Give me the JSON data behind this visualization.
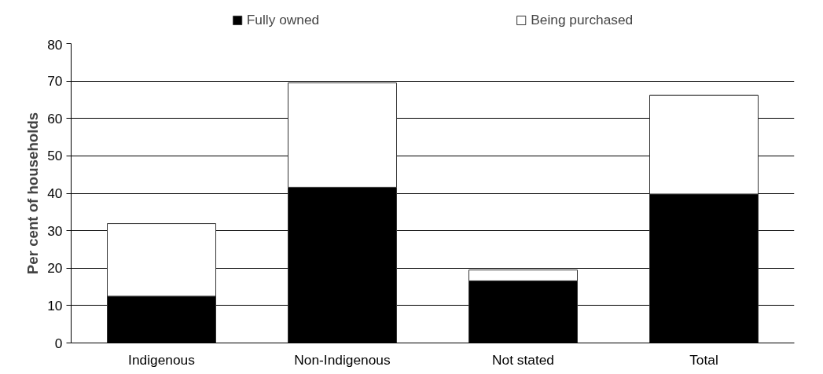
{
  "chart_data": {
    "type": "bar",
    "stacked": true,
    "ylabel": "Per cent of households",
    "categories": [
      "Indigenous",
      "Non-Indigenous",
      "Not stated",
      "Total"
    ],
    "series": [
      {
        "name": "Fully owned",
        "color": "#000000",
        "values": [
          12.5,
          41.6,
          16.6,
          39.8
        ]
      },
      {
        "name": "Being purchased",
        "color": "#ffffff",
        "values": [
          19.4,
          27.9,
          2.9,
          26.4
        ]
      }
    ],
    "ylim": [
      0,
      80
    ],
    "yticks": [
      0,
      10,
      20,
      30,
      40,
      50,
      60,
      70,
      80
    ],
    "grid": "y",
    "legend": "top"
  }
}
